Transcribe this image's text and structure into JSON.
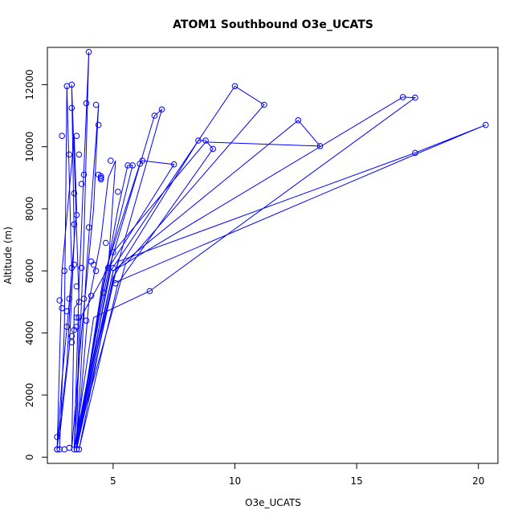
{
  "chart_data": {
    "type": "line",
    "title": "ATOM1 Southbound O3e_UCATS",
    "xlabel": "O3e_UCATS",
    "ylabel": "Altitude (m)",
    "xlim": [
      2.3,
      20.8
    ],
    "ylim": [
      -200,
      13200
    ],
    "xticks": [
      5,
      10,
      15,
      20
    ],
    "yticks": [
      0,
      2000,
      4000,
      6000,
      8000,
      10000,
      12000
    ],
    "xtick_labels": [
      "5",
      "10",
      "15",
      "20"
    ],
    "ytick_labels": [
      "0",
      "2000",
      "4000",
      "6000",
      "8000",
      "10000",
      "12000"
    ],
    "grid": false,
    "legend": "none",
    "color": "#0000ff",
    "series": [
      {
        "x": [
          2.7,
          2.9,
          3.2,
          3.5,
          3.4,
          2.9,
          2.7
        ],
        "y": [
          250,
          2500,
          5000,
          8000,
          10350,
          6000,
          250
        ]
      },
      {
        "x": [
          2.7,
          3.1,
          3.3,
          3.1,
          3.0,
          2.8
        ],
        "y": [
          250,
          3000,
          6000,
          11950,
          4200,
          250
        ]
      },
      {
        "x": [
          2.8,
          3.2,
          3.4,
          3.3,
          3.6,
          3.4,
          3.3
        ],
        "y": [
          650,
          3500,
          7000,
          12000,
          5000,
          4800,
          250
        ]
      },
      {
        "x": [
          3.4,
          3.6,
          3.8,
          4.0,
          3.6,
          3.4
        ],
        "y": [
          250,
          3000,
          7000,
          13050,
          5500,
          250
        ]
      },
      {
        "x": [
          3.3,
          3.7,
          4.2,
          4.4,
          3.9,
          3.5
        ],
        "y": [
          250,
          4000,
          8000,
          11350,
          6000,
          250
        ]
      },
      {
        "x": [
          3.5,
          4.0,
          4.5,
          4.8,
          5.1,
          4.8,
          3.6,
          3.5
        ],
        "y": [
          250,
          5000,
          7000,
          9000,
          9550,
          6100,
          4400,
          250
        ]
      },
      {
        "x": [
          3.5,
          4.5,
          5.2,
          5.6,
          5.8,
          4.6,
          3.5
        ],
        "y": [
          250,
          5000,
          8000,
          9400,
          9400,
          5600,
          250
        ]
      },
      {
        "x": [
          3.5,
          4.6,
          6.1,
          6.2,
          7.5,
          4.9,
          3.5
        ],
        "y": [
          250,
          5800,
          9450,
          9550,
          9430,
          6200,
          250
        ]
      },
      {
        "x": [
          3.4,
          4.8,
          6.7,
          7.0,
          5.0,
          3.4
        ],
        "y": [
          250,
          6000,
          11000,
          11200,
          5700,
          250
        ]
      },
      {
        "x": [
          3.6,
          5.0,
          8.5,
          8.8,
          9.1,
          5.2,
          3.6
        ],
        "y": [
          250,
          5800,
          10200,
          10200,
          9930,
          5600,
          250
        ]
      },
      {
        "x": [
          3.4,
          4.9,
          10.0,
          11.2,
          5.5,
          3.4
        ],
        "y": [
          250,
          6000,
          11950,
          11350,
          6200,
          250
        ]
      },
      {
        "x": [
          3.5,
          5.0,
          12.6,
          13.5,
          8.8,
          5.0,
          3.5
        ],
        "y": [
          250,
          6000,
          10850,
          10020,
          10150,
          6600,
          250
        ]
      },
      {
        "x": [
          3.4,
          5.0,
          16.9,
          17.4,
          6.5,
          4.2,
          3.4
        ],
        "y": [
          250,
          6000,
          11600,
          11580,
          5350,
          4500,
          250
        ]
      },
      {
        "x": [
          3.5,
          5.0,
          17.4,
          20.3,
          17.4,
          5.2,
          3.5
        ],
        "y": [
          250,
          5600,
          9750,
          10700,
          9800,
          6300,
          250
        ]
      }
    ],
    "points": {
      "x": [
        2.7,
        2.7,
        2.8,
        2.9,
        3.0,
        3.1,
        3.1,
        3.2,
        3.3,
        3.3,
        3.3,
        3.3,
        3.4,
        3.4,
        3.4,
        3.5,
        3.5,
        3.5,
        3.5,
        3.6,
        3.6,
        3.7,
        3.8,
        3.9,
        4.0,
        4.0,
        4.1,
        4.2,
        4.3,
        4.4,
        4.4,
        4.5,
        4.5,
        4.6,
        4.7,
        4.8,
        4.9,
        5.0,
        5.0,
        5.1,
        5.2,
        5.6,
        5.8,
        6.1,
        6.2,
        6.5,
        6.7,
        7.0,
        7.5,
        8.5,
        8.8,
        9.1,
        10.0,
        11.2,
        12.6,
        13.5,
        16.9,
        17.4,
        17.4,
        20.3,
        2.7,
        2.8,
        3.0,
        3.2,
        3.4,
        3.5,
        3.6,
        3.3,
        3.1,
        2.9,
        3.2,
        3.4,
        3.7,
        3.9,
        4.1,
        4.3,
        3.8,
        3.5,
        3.6,
        4.5
      ],
      "y": [
        250,
        650,
        5050,
        10350,
        6000,
        11950,
        4700,
        9750,
        12000,
        11250,
        6100,
        3700,
        8500,
        7500,
        6200,
        5500,
        4500,
        4200,
        10350,
        9750,
        5000,
        8800,
        5100,
        11400,
        13050,
        7400,
        6300,
        6200,
        11350,
        10700,
        9100,
        9000,
        8950,
        5300,
        6900,
        6100,
        9550,
        6600,
        6100,
        5600,
        8550,
        9400,
        9400,
        9450,
        9550,
        5350,
        11000,
        11200,
        9430,
        10200,
        10200,
        9930,
        11950,
        11350,
        10850,
        10020,
        11600,
        11580,
        9800,
        10700,
        250,
        250,
        250,
        300,
        250,
        250,
        250,
        3900,
        4200,
        4800,
        5100,
        4100,
        6100,
        4400,
        5200,
        6000,
        9100,
        7800,
        4500,
        9050
      ]
    }
  }
}
